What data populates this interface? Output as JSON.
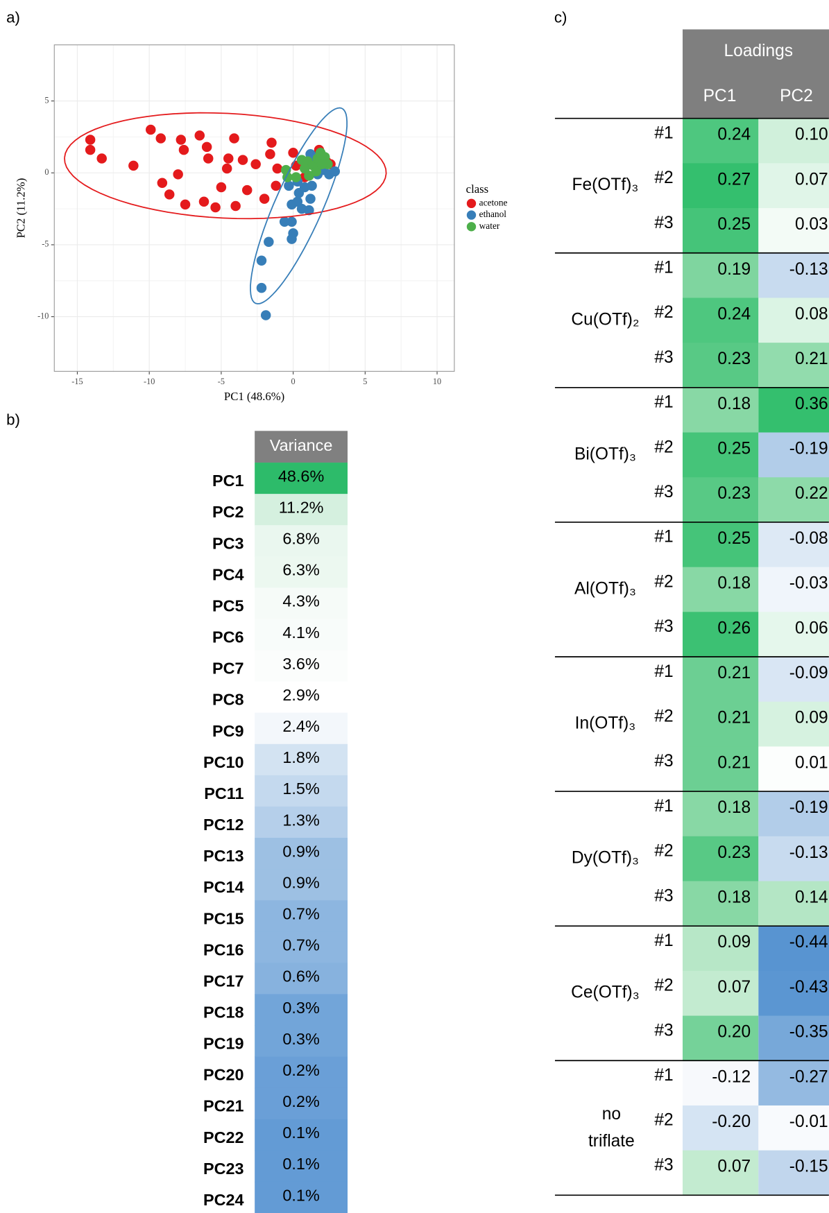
{
  "panels": {
    "a": "a)",
    "b": "b)",
    "c": "c)"
  },
  "chart_data": {
    "type": "scatter",
    "x_label": "PC1 (48.6%)",
    "y_label": "PC2 (11.2%)",
    "legend_title": "class",
    "legend": "right",
    "xlim": [
      -16.6,
      11.2
    ],
    "ylim": [
      -13.8,
      8.9
    ],
    "xticks": [
      -15,
      -10,
      -5,
      0,
      5,
      10
    ],
    "yticks": [
      -10,
      -5,
      0,
      5
    ],
    "grid": true,
    "series": [
      {
        "name": "acetone",
        "color": "#e41a1c",
        "ellipse": true,
        "x": [
          -14.1,
          -14.1,
          -13.3,
          -11.1,
          -9.9,
          -9.2,
          -9.1,
          -8.6,
          -7.8,
          -7.6,
          -8.0,
          -7.5,
          -6.5,
          -6.0,
          -5.9,
          -6.2,
          -5.4,
          -5.0,
          -4.6,
          -4.5,
          -4.1,
          -3.5,
          -4.0,
          -3.2,
          -2.6,
          -1.6,
          -1.5,
          -2.0,
          -1.2,
          -1.1,
          0,
          0.2,
          0.8,
          1.5,
          1.8,
          2.3,
          2.6,
          0.9
        ],
        "values": [
          2.3,
          1.6,
          1.0,
          0.5,
          3.0,
          2.4,
          -0.7,
          -1.5,
          2.3,
          1.6,
          -0.1,
          -2.2,
          2.6,
          1.8,
          1.0,
          -2.0,
          -2.4,
          -1.0,
          0.3,
          1.0,
          2.4,
          0.9,
          -2.3,
          -1.2,
          0.6,
          1.3,
          2.1,
          -1.8,
          -0.9,
          0.3,
          1.4,
          0.5,
          -0.3,
          0.9,
          1.6,
          0.8,
          0.6,
          0.5
        ]
      },
      {
        "name": "ethanol",
        "color": "#377eb8",
        "ellipse": true,
        "x": [
          -1.9,
          -2.2,
          -2.2,
          -1.7,
          -0.6,
          -0.1,
          0,
          -0.1,
          -0.1,
          0.3,
          0.6,
          1.1,
          1.2,
          0.4,
          0.8,
          1.3,
          1.7,
          2.1,
          2.5,
          2.9,
          0.9,
          1.5,
          0.3,
          -0.3,
          1.2
        ],
        "values": [
          -9.9,
          -8.0,
          -6.1,
          -4.8,
          -3.4,
          -3.4,
          -4.2,
          -4.6,
          -2.2,
          -2.0,
          -2.5,
          -2.6,
          -1.8,
          -1.4,
          -1.0,
          -0.9,
          -0.1,
          0.2,
          -0.1,
          0.1,
          0.6,
          1.0,
          -0.6,
          -0.9,
          1.3
        ]
      },
      {
        "name": "water",
        "color": "#4daf4a",
        "ellipse": false,
        "x": [
          -0.5,
          -0.4,
          0.2,
          0.6,
          1.0,
          1.4,
          1.7,
          1.9,
          2.2,
          2.4,
          1.6,
          1.1,
          2.0,
          0.8
        ],
        "values": [
          0.2,
          -0.3,
          -0.3,
          0.9,
          0.8,
          0.5,
          1.0,
          1.4,
          1.1,
          0.6,
          0.1,
          -0.2,
          0.6,
          0.3
        ]
      }
    ]
  },
  "variance_table": {
    "header": "Variance",
    "rows": [
      {
        "label": "PC1",
        "value": "48.6%",
        "color": "#2dbb6a"
      },
      {
        "label": "PC2",
        "value": "11.2%",
        "color": "#d5f0df"
      },
      {
        "label": "PC3",
        "value": "6.8%",
        "color": "#eaf7ef"
      },
      {
        "label": "PC4",
        "value": "6.3%",
        "color": "#ecf8f0"
      },
      {
        "label": "PC5",
        "value": "4.3%",
        "color": "#f6fbf8"
      },
      {
        "label": "PC6",
        "value": "4.1%",
        "color": "#f8fcfa"
      },
      {
        "label": "PC7",
        "value": "3.6%",
        "color": "#fbfdfc"
      },
      {
        "label": "PC8",
        "value": "2.9%",
        "color": "#ffffff"
      },
      {
        "label": "PC9",
        "value": "2.4%",
        "color": "#f3f7fb"
      },
      {
        "label": "PC10",
        "value": "1.8%",
        "color": "#d3e3f2"
      },
      {
        "label": "PC11",
        "value": "1.5%",
        "color": "#c4d9ee"
      },
      {
        "label": "PC12",
        "value": "1.3%",
        "color": "#b5cfea"
      },
      {
        "label": "PC13",
        "value": "0.9%",
        "color": "#9dc0e3"
      },
      {
        "label": "PC14",
        "value": "0.9%",
        "color": "#9dc0e3"
      },
      {
        "label": "PC15",
        "value": "0.7%",
        "color": "#8db6e0"
      },
      {
        "label": "PC16",
        "value": "0.7%",
        "color": "#8db6e0"
      },
      {
        "label": "PC17",
        "value": "0.6%",
        "color": "#87b2de"
      },
      {
        "label": "PC18",
        "value": "0.3%",
        "color": "#72a5d9"
      },
      {
        "label": "PC19",
        "value": "0.3%",
        "color": "#72a5d9"
      },
      {
        "label": "PC20",
        "value": "0.2%",
        "color": "#6a9fd7"
      },
      {
        "label": "PC21",
        "value": "0.2%",
        "color": "#6a9fd7"
      },
      {
        "label": "PC22",
        "value": "0.1%",
        "color": "#639bd5"
      },
      {
        "label": "PC23",
        "value": "0.1%",
        "color": "#639bd5"
      },
      {
        "label": "PC24",
        "value": "0.1%",
        "color": "#639bd5"
      }
    ]
  },
  "loadings_table": {
    "header": "Loadings",
    "columns": [
      "PC1",
      "PC2"
    ],
    "groups": [
      {
        "label": "Fe(OTf)₃",
        "rows": [
          {
            "id": "#1",
            "values": [
              "0.24",
              "0.10"
            ],
            "colors": [
              "#4ec77f",
              "#d0f0db"
            ]
          },
          {
            "id": "#2",
            "values": [
              "0.27",
              "0.07"
            ],
            "colors": [
              "#34bf6e",
              "#e0f5e8"
            ]
          },
          {
            "id": "#3",
            "values": [
              "0.25",
              "0.03"
            ],
            "colors": [
              "#45c479",
              "#f3fbf6"
            ]
          }
        ]
      },
      {
        "label": "Cu(OTf)₂",
        "rows": [
          {
            "id": "#1",
            "values": [
              "0.19",
              "-0.13"
            ],
            "colors": [
              "#7fd59f",
              "#c8dbef"
            ]
          },
          {
            "id": "#2",
            "values": [
              "0.24",
              "0.08"
            ],
            "colors": [
              "#4ec77f",
              "#dbf4e4"
            ]
          },
          {
            "id": "#3",
            "values": [
              "0.23",
              "0.21"
            ],
            "colors": [
              "#58c985",
              "#92dcad"
            ]
          }
        ]
      },
      {
        "label": "Bi(OTf)₃",
        "rows": [
          {
            "id": "#1",
            "values": [
              "0.18",
              "0.36"
            ],
            "colors": [
              "#88d8a5",
              "#34bf6e"
            ]
          },
          {
            "id": "#2",
            "values": [
              "0.25",
              "-0.19"
            ],
            "colors": [
              "#45c479",
              "#b2cde9"
            ]
          },
          {
            "id": "#3",
            "values": [
              "0.23",
              "0.22"
            ],
            "colors": [
              "#58c985",
              "#8ddaa9"
            ]
          }
        ]
      },
      {
        "label": "Al(OTf)₃",
        "rows": [
          {
            "id": "#1",
            "values": [
              "0.25",
              "-0.08"
            ],
            "colors": [
              "#45c479",
              "#dde9f5"
            ]
          },
          {
            "id": "#2",
            "values": [
              "0.18",
              "-0.03"
            ],
            "colors": [
              "#88d8a5",
              "#f0f5fb"
            ]
          },
          {
            "id": "#3",
            "values": [
              "0.26",
              "0.06"
            ],
            "colors": [
              "#3cc173",
              "#e5f7ec"
            ]
          }
        ]
      },
      {
        "label": "In(OTf)₃",
        "rows": [
          {
            "id": "#1",
            "values": [
              "0.21",
              "-0.09"
            ],
            "colors": [
              "#6ccf93",
              "#d9e6f4"
            ]
          },
          {
            "id": "#2",
            "values": [
              "0.21",
              "0.09"
            ],
            "colors": [
              "#6ccf93",
              "#d6f2e0"
            ]
          },
          {
            "id": "#3",
            "values": [
              "0.21",
              "0.01"
            ],
            "colors": [
              "#6ccf93",
              "#fcfefd"
            ]
          }
        ]
      },
      {
        "label": "Dy(OTf)₃",
        "rows": [
          {
            "id": "#1",
            "values": [
              "0.18",
              "-0.19"
            ],
            "colors": [
              "#88d8a5",
              "#b2cde9"
            ]
          },
          {
            "id": "#2",
            "values": [
              "0.23",
              "-0.13"
            ],
            "colors": [
              "#58c985",
              "#c8dbef"
            ]
          },
          {
            "id": "#3",
            "values": [
              "0.18",
              "0.14"
            ],
            "colors": [
              "#88d8a5",
              "#b4e6c5"
            ]
          }
        ]
      },
      {
        "label": "Ce(OTf)₃",
        "rows": [
          {
            "id": "#1",
            "values": [
              "0.09",
              "-0.44"
            ],
            "colors": [
              "#b7e7c7",
              "#5894d1"
            ]
          },
          {
            "id": "#2",
            "values": [
              "0.07",
              "-0.43"
            ],
            "colors": [
              "#c3ebd0",
              "#5b96d2"
            ]
          },
          {
            "id": "#3",
            "values": [
              "0.20",
              "-0.35"
            ],
            "colors": [
              "#75d299",
              "#77a8d9"
            ]
          }
        ]
      },
      {
        "label": [
          "no",
          "triflate"
        ],
        "rows": [
          {
            "id": "#1",
            "values": [
              "-0.12",
              "-0.27"
            ],
            "colors": [
              "#f7f9fc",
              "#94bae1"
            ]
          },
          {
            "id": "#2",
            "values": [
              "-0.20",
              "-0.01"
            ],
            "colors": [
              "#d5e4f3",
              "#f8fafd"
            ]
          },
          {
            "id": "#3",
            "values": [
              "0.07",
              "-0.15"
            ],
            "colors": [
              "#c3ebd0",
              "#c1d6ed"
            ]
          }
        ]
      }
    ]
  }
}
